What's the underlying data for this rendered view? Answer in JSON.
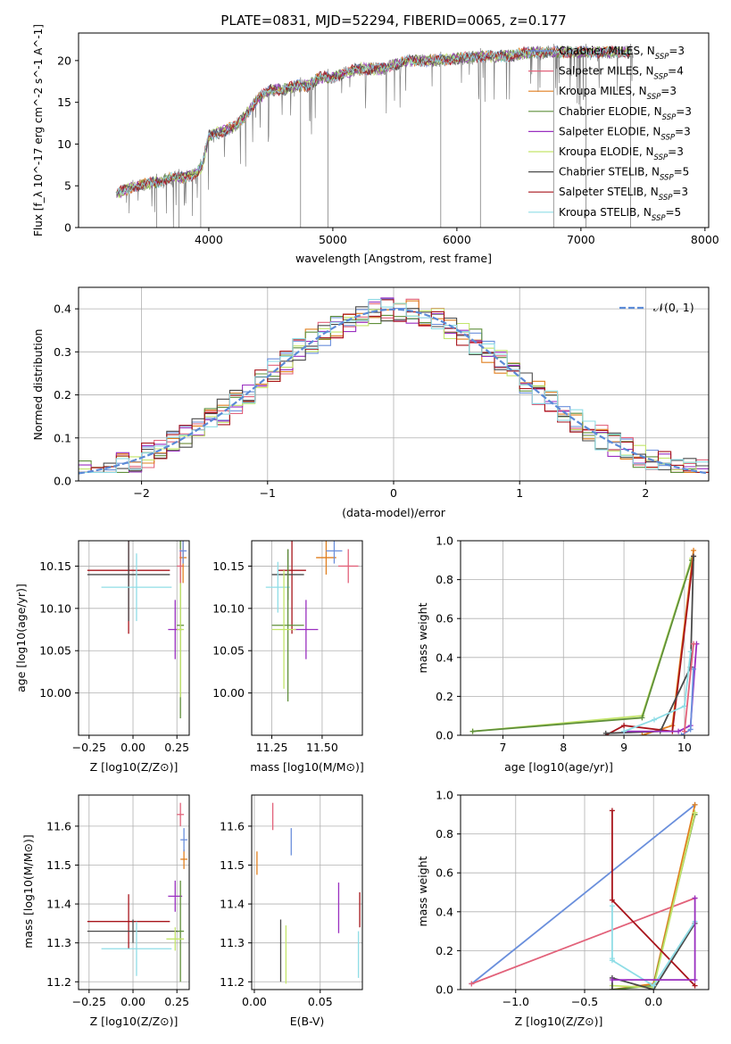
{
  "chart_data": [
    {
      "id": "spectrum",
      "type": "line",
      "title": "PLATE=0831, MJD=52294, FIBERID=0065, z=0.177",
      "xlabel": "wavelength [Angstrom, rest frame]",
      "ylabel": "Flux [f_λ 10^-17 erg cm^-2 s^-1 A^-1]",
      "xlim": [
        2950,
        8030
      ],
      "ylim": [
        0,
        23.3
      ],
      "xticks": [
        "4000",
        "5000",
        "6000",
        "7000",
        "8000"
      ],
      "yticks": [
        "0",
        "5",
        "10",
        "15",
        "20"
      ],
      "legend_position": "right",
      "spectrum_envelope": {
        "x": [
          3250,
          3400,
          3500,
          3600,
          3700,
          3800,
          3900,
          3950,
          4000,
          4100,
          4200,
          4300,
          4400,
          4500,
          4600,
          4700,
          4800,
          4900,
          5000,
          5200,
          5400,
          5600,
          5800,
          6000,
          6200,
          6400,
          6600,
          6800,
          7000,
          7200,
          7400
        ],
        "y": [
          4.0,
          5.0,
          5.2,
          5.5,
          6.0,
          6.0,
          6.5,
          7.5,
          11.0,
          11.5,
          12.0,
          13.5,
          15.5,
          16.5,
          16.5,
          17.0,
          17.0,
          18.0,
          18.0,
          19.0,
          19.0,
          20.0,
          20.0,
          20.2,
          20.5,
          20.5,
          21.0,
          21.0,
          21.0,
          21.0,
          21.0
        ]
      },
      "series": [
        {
          "name": "Chabrier MILES",
          "n_ssp": "=3",
          "color": "#6a8fdc"
        },
        {
          "name": "Salpeter MILES",
          "n_ssp": "=4",
          "color": "#e2627a"
        },
        {
          "name": "Kroupa MILES",
          "n_ssp": "=3",
          "color": "#e07f1f"
        },
        {
          "name": "Chabrier ELODIE",
          "n_ssp": "=3",
          "color": "#5f8f3a"
        },
        {
          "name": "Salpeter ELODIE",
          "n_ssp": "=3",
          "color": "#9a2fc0"
        },
        {
          "name": "Kroupa ELODIE",
          "n_ssp": "=3",
          "color": "#c3e56b"
        },
        {
          "name": "Chabrier STELIB",
          "n_ssp": "=5",
          "color": "#4a4a4a"
        },
        {
          "name": "Salpeter STELIB",
          "n_ssp": "=3",
          "color": "#a8151c"
        },
        {
          "name": "Kroupa STELIB",
          "n_ssp": "=5",
          "color": "#8fdde6"
        }
      ]
    },
    {
      "id": "residuals",
      "type": "line",
      "xlabel": "(data-model)/error",
      "ylabel": "Normed distribution",
      "xlim": [
        -2.5,
        2.5
      ],
      "ylim": [
        0,
        0.45
      ],
      "xticks": [
        "−2",
        "−1",
        "0",
        "1",
        "2"
      ],
      "yticks": [
        "0.0",
        "0.1",
        "0.2",
        "0.3",
        "0.4"
      ],
      "legend": "𝒩(0, 1)",
      "reference_curve": {
        "name": "N(0,1)",
        "mean": 0,
        "sigma": 1,
        "color": "#5b8ad6"
      },
      "histogram_bins": [
        -2.5,
        -2.4,
        -2.3,
        -2.2,
        -2.1,
        -2.0,
        -1.9,
        -1.8,
        -1.7,
        -1.6,
        -1.5,
        -1.4,
        -1.3,
        -1.2,
        -1.1,
        -1.0,
        -0.9,
        -0.8,
        -0.7,
        -0.6,
        -0.5,
        -0.4,
        -0.3,
        -0.2,
        -0.1,
        0.0,
        0.1,
        0.2,
        0.3,
        0.4,
        0.5,
        0.6,
        0.7,
        0.8,
        0.9,
        1.0,
        1.1,
        1.2,
        1.3,
        1.4,
        1.5,
        1.6,
        1.7,
        1.8,
        1.9,
        2.0,
        2.1,
        2.2,
        2.3,
        2.4,
        2.5
      ]
    },
    {
      "id": "age_vs_Z",
      "type": "scatter",
      "xlabel": "Z [log10(Z/Z⊙)]",
      "ylabel": "age  [log10(age/yr)]",
      "xlim": [
        -0.31,
        0.32
      ],
      "ylim": [
        9.95,
        10.18
      ],
      "xticks": [
        "−0.25",
        "0.00",
        "0.25"
      ],
      "yticks": [
        "10.00",
        "10.05",
        "10.10",
        "10.15"
      ],
      "points": [
        {
          "series": "Salpeter STELIB",
          "x": -0.025,
          "xerr": 0.235,
          "y": 10.145,
          "yerr": 0.075
        },
        {
          "series": "Chabrier STELIB",
          "x": -0.025,
          "xerr": 0.235,
          "y": 10.14,
          "yerr": 0.055
        },
        {
          "series": "Kroupa STELIB",
          "x": 0.02,
          "xerr": 0.2,
          "y": 10.125,
          "yerr": 0.04
        },
        {
          "series": "Salpeter ELODIE",
          "x": 0.24,
          "xerr": 0.04,
          "y": 10.075,
          "yerr": 0.035
        },
        {
          "series": "Chabrier ELODIE",
          "x": 0.27,
          "xerr": 0.02,
          "y": 10.08,
          "yerr": 0.11
        },
        {
          "series": "Kroupa ELODIE",
          "x": 0.27,
          "xerr": 0.02,
          "y": 10.075,
          "yerr": 0.08
        },
        {
          "series": "Salpeter MILES",
          "x": 0.27,
          "xerr": 0.02,
          "y": 10.15,
          "yerr": 0.02
        },
        {
          "series": "Kroupa MILES",
          "x": 0.285,
          "xerr": 0.02,
          "y": 10.16,
          "yerr": 0.03
        },
        {
          "series": "Chabrier MILES",
          "x": 0.285,
          "xerr": 0.02,
          "y": 10.168,
          "yerr": 0.015
        }
      ]
    },
    {
      "id": "age_vs_mass",
      "type": "scatter",
      "xlabel": "mass [log10(M/M⊙)]",
      "ylabel": "",
      "xlim": [
        11.15,
        11.7
      ],
      "ylim": [
        9.95,
        10.18
      ],
      "xticks": [
        "11.25",
        "11.50"
      ],
      "yticks": [
        "10.00",
        "10.05",
        "10.10",
        "10.15"
      ],
      "points": [
        {
          "series": "Salpeter STELIB",
          "x": 11.35,
          "xerr": 0.07,
          "y": 10.145,
          "yerr": 0.075
        },
        {
          "series": "Chabrier STELIB",
          "x": 11.33,
          "xerr": 0.08,
          "y": 10.14,
          "yerr": 0.03
        },
        {
          "series": "Kroupa STELIB",
          "x": 11.28,
          "xerr": 0.06,
          "y": 10.125,
          "yerr": 0.03
        },
        {
          "series": "Salpeter ELODIE",
          "x": 11.42,
          "xerr": 0.06,
          "y": 10.075,
          "yerr": 0.035
        },
        {
          "series": "Chabrier ELODIE",
          "x": 11.33,
          "xerr": 0.08,
          "y": 10.08,
          "yerr": 0.09
        },
        {
          "series": "Kroupa ELODIE",
          "x": 11.31,
          "xerr": 0.06,
          "y": 10.075,
          "yerr": 0.07
        },
        {
          "series": "Salpeter MILES",
          "x": 11.63,
          "xerr": 0.05,
          "y": 10.15,
          "yerr": 0.02
        },
        {
          "series": "Kroupa MILES",
          "x": 11.52,
          "xerr": 0.05,
          "y": 10.16,
          "yerr": 0.02
        },
        {
          "series": "Chabrier MILES",
          "x": 11.56,
          "xerr": 0.04,
          "y": 10.168,
          "yerr": 0.015
        }
      ]
    },
    {
      "id": "weight_vs_age",
      "type": "line",
      "xlabel": "age  [log10(age/yr)]",
      "ylabel": "mass weight",
      "xlim": [
        6.3,
        10.4
      ],
      "ylim": [
        0,
        1.0
      ],
      "xticks": [
        "7",
        "8",
        "9",
        "10"
      ],
      "yticks": [
        "0.0",
        "0.2",
        "0.4",
        "0.6",
        "0.8",
        "1.0"
      ],
      "lines": [
        {
          "series": "Kroupa ELODIE",
          "x": [
            6.5,
            9.3,
            10.12
          ],
          "y": [
            0.02,
            0.1,
            0.91
          ]
        },
        {
          "series": "Chabrier ELODIE",
          "x": [
            6.5,
            9.3,
            10.12
          ],
          "y": [
            0.02,
            0.09,
            0.9
          ]
        },
        {
          "series": "Kroupa MILES",
          "x": [
            9.3,
            9.8,
            10.15
          ],
          "y": [
            0.0,
            0.05,
            0.95
          ]
        },
        {
          "series": "Salpeter STELIB",
          "x": [
            8.7,
            9.0,
            9.8,
            10.15
          ],
          "y": [
            0.0,
            0.05,
            0.02,
            0.92
          ]
        },
        {
          "series": "Chabrier STELIB",
          "x": [
            8.7,
            9.6,
            10.1,
            10.15
          ],
          "y": [
            0.01,
            0.02,
            0.35,
            0.92
          ]
        },
        {
          "series": "Salpeter ELODIE",
          "x": [
            9.0,
            9.9,
            10.1,
            10.2
          ],
          "y": [
            0.02,
            0.02,
            0.05,
            0.47
          ]
        },
        {
          "series": "Kroupa STELIB",
          "x": [
            9.0,
            9.5,
            10.0,
            10.1
          ],
          "y": [
            0.02,
            0.08,
            0.15,
            0.43
          ]
        },
        {
          "series": "Chabrier MILES",
          "x": [
            9.95,
            10.1,
            10.15
          ],
          "y": [
            0.0,
            0.03,
            0.34
          ]
        },
        {
          "series": "Salpeter MILES",
          "x": [
            10.0,
            10.15
          ],
          "y": [
            0.02,
            0.47
          ]
        }
      ]
    },
    {
      "id": "mass_vs_Z",
      "type": "scatter",
      "xlabel": "Z [log10(Z/Z⊙)]",
      "ylabel": "mass [log10(M/M⊙)]",
      "xlim": [
        -0.31,
        0.32
      ],
      "ylim": [
        11.18,
        11.68
      ],
      "xticks": [
        "−0.25",
        "0.00",
        "0.25"
      ],
      "yticks": [
        "11.2",
        "11.3",
        "11.4",
        "11.5",
        "11.6"
      ],
      "points": [
        {
          "series": "Salpeter STELIB",
          "x": -0.025,
          "xerr": 0.235,
          "y": 11.355,
          "yerr": 0.07
        },
        {
          "series": "Chabrier STELIB",
          "x": 0.0,
          "xerr": 0.26,
          "y": 11.33,
          "yerr": 0.03
        },
        {
          "series": "Kroupa STELIB",
          "x": 0.02,
          "xerr": 0.2,
          "y": 11.285,
          "yerr": 0.07
        },
        {
          "series": "Salpeter ELODIE",
          "x": 0.24,
          "xerr": 0.04,
          "y": 11.42,
          "yerr": 0.04
        },
        {
          "series": "Chabrier ELODIE",
          "x": 0.27,
          "xerr": 0.02,
          "y": 11.33,
          "yerr": 0.13
        },
        {
          "series": "Kroupa ELODIE",
          "x": 0.24,
          "xerr": 0.05,
          "y": 11.31,
          "yerr": 0.03
        },
        {
          "series": "Salpeter MILES",
          "x": 0.27,
          "xerr": 0.02,
          "y": 11.63,
          "yerr": 0.03
        },
        {
          "series": "Kroupa MILES",
          "x": 0.29,
          "xerr": 0.02,
          "y": 11.515,
          "yerr": 0.025
        },
        {
          "series": "Chabrier MILES",
          "x": 0.29,
          "xerr": 0.02,
          "y": 11.565,
          "yerr": 0.03
        }
      ]
    },
    {
      "id": "mass_vs_EBV",
      "type": "scatter",
      "xlabel": "E(B-V)",
      "ylabel": "",
      "xlim": [
        -0.002,
        0.082
      ],
      "ylim": [
        11.18,
        11.68
      ],
      "xticks": [
        "0.00",
        "0.05"
      ],
      "yticks": [
        "11.2",
        "11.3",
        "11.4",
        "11.5",
        "11.6"
      ],
      "points": [
        {
          "series": "Kroupa MILES",
          "x": 0.002,
          "xerr": 0,
          "y": 11.505,
          "yerr": 0.03
        },
        {
          "series": "Salpeter MILES",
          "x": 0.014,
          "xerr": 0,
          "y": 11.625,
          "yerr": 0.035
        },
        {
          "series": "Chabrier MILES",
          "x": 0.028,
          "xerr": 0,
          "y": 11.56,
          "yerr": 0.035
        },
        {
          "series": "Chabrier STELIB",
          "x": 0.02,
          "xerr": 0,
          "y": 11.28,
          "yerr": 0.08
        },
        {
          "series": "Kroupa ELODIE",
          "x": 0.024,
          "xerr": 0,
          "y": 11.27,
          "yerr": 0.075
        },
        {
          "series": "Salpeter ELODIE",
          "x": 0.064,
          "xerr": 0,
          "y": 11.39,
          "yerr": 0.065
        },
        {
          "series": "Salpeter STELIB",
          "x": 0.08,
          "xerr": 0,
          "y": 11.385,
          "yerr": 0.045
        },
        {
          "series": "Kroupa STELIB",
          "x": 0.079,
          "xerr": 0,
          "y": 11.27,
          "yerr": 0.06
        }
      ]
    },
    {
      "id": "weight_vs_Z",
      "type": "line",
      "xlabel": "Z [log10(Z/Z⊙)]",
      "ylabel": "mass weight",
      "xlim": [
        -1.4,
        0.4
      ],
      "ylim": [
        0,
        1.0
      ],
      "xticks": [
        "−1.0",
        "−0.5",
        "0.0"
      ],
      "yticks": [
        "0.0",
        "0.2",
        "0.4",
        "0.6",
        "0.8",
        "1.0"
      ],
      "lines": [
        {
          "series": "Chabrier MILES",
          "x": [
            -1.32,
            0.3
          ],
          "y": [
            0.03,
            0.95
          ]
        },
        {
          "series": "Salpeter MILES",
          "x": [
            -1.32,
            0.3
          ],
          "y": [
            0.03,
            0.47
          ]
        },
        {
          "series": "Kroupa MILES",
          "x": [
            -0.3,
            0.0,
            0.3
          ],
          "y": [
            0.0,
            0.03,
            0.95
          ]
        },
        {
          "series": "Chabrier ELODIE",
          "x": [
            -0.3,
            0.0,
            0.3
          ],
          "y": [
            0.0,
            0.02,
            0.9
          ]
        },
        {
          "series": "Kroupa ELODIE",
          "x": [
            -0.3,
            0.0,
            0.3
          ],
          "y": [
            0.02,
            0.01,
            0.91
          ]
        },
        {
          "series": "Chabrier STELIB",
          "x": [
            -0.3,
            -0.3,
            0.0,
            0.3
          ],
          "y": [
            0.0,
            0.06,
            0.0,
            0.34
          ]
        },
        {
          "series": "Salpeter STELIB",
          "x": [
            -0.3,
            -0.3,
            0.3
          ],
          "y": [
            0.92,
            0.46,
            0.02
          ]
        },
        {
          "series": "Kroupa STELIB",
          "x": [
            -0.3,
            -0.3,
            -0.3,
            0.0,
            0.3
          ],
          "y": [
            0.43,
            0.16,
            0.15,
            0.02,
            0.35
          ]
        },
        {
          "series": "Salpeter ELODIE",
          "x": [
            -0.3,
            0.3,
            0.3
          ],
          "y": [
            0.05,
            0.05,
            0.47
          ]
        }
      ]
    }
  ]
}
